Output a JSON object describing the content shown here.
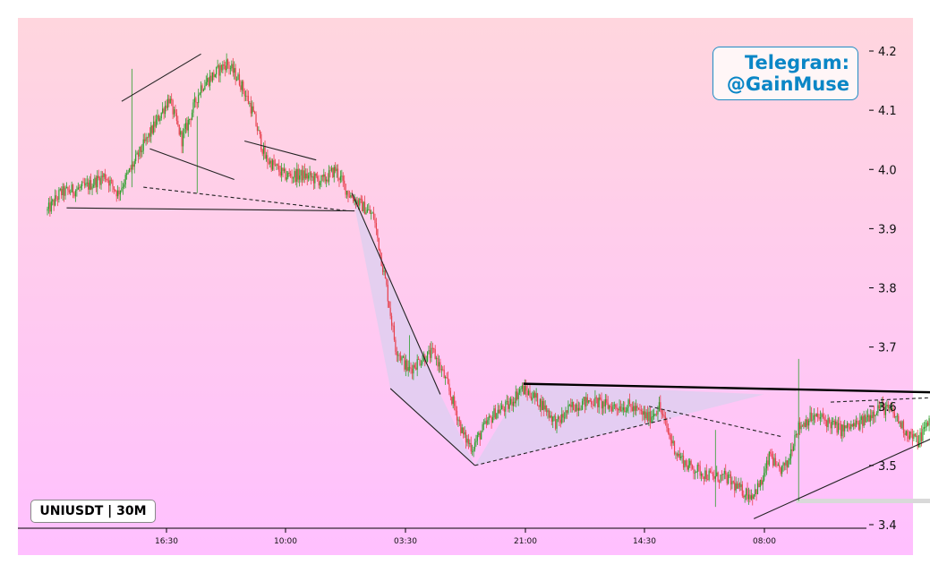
{
  "chart_data": {
    "type": "candlestick",
    "symbol_label": "UNIUSDT | 30M",
    "watermark": {
      "line1": "Telegram:",
      "line2": "@GainMuse"
    },
    "x_tick_labels": [
      "16:30",
      "10:00",
      "03:30",
      "21:00",
      "14:30",
      "08:00"
    ],
    "y_ticks": [
      3.4,
      3.5,
      3.6,
      3.7,
      3.8,
      3.9,
      4.0,
      4.1,
      4.2
    ],
    "y_tick_labels": [
      "3.4",
      "3.5",
      "3.6",
      "3.7",
      "3.8",
      "3.9",
      "4.0",
      "4.1",
      "4.2"
    ],
    "ylim": [
      3.393,
      4.25
    ],
    "x_count": 640,
    "grid": false,
    "colors": {
      "up": "#2ca02c",
      "down": "#e8424f",
      "bg_top": "#ffd6de",
      "bg_bottom": "#ffc0ff",
      "pattern_line": "#222222",
      "resistance": "#000000",
      "arrow": "#1f3fe0",
      "fill": "#d8d0f0",
      "support_band": "#d9d9d9"
    },
    "price_path": [
      [
        0,
        3.93
      ],
      [
        10,
        3.96
      ],
      [
        30,
        3.97
      ],
      [
        45,
        3.99
      ],
      [
        55,
        3.96
      ],
      [
        70,
        4.02
      ],
      [
        85,
        4.08
      ],
      [
        95,
        4.12
      ],
      [
        105,
        4.05
      ],
      [
        120,
        4.14
      ],
      [
        140,
        4.18
      ],
      [
        150,
        4.15
      ],
      [
        160,
        4.1
      ],
      [
        170,
        4.02
      ],
      [
        185,
        3.99
      ],
      [
        200,
        3.99
      ],
      [
        215,
        3.98
      ],
      [
        225,
        4.0
      ],
      [
        235,
        3.96
      ],
      [
        245,
        3.94
      ],
      [
        255,
        3.92
      ],
      [
        265,
        3.8
      ],
      [
        272,
        3.7
      ],
      [
        282,
        3.66
      ],
      [
        292,
        3.68
      ],
      [
        302,
        3.69
      ],
      [
        310,
        3.65
      ],
      [
        318,
        3.6
      ],
      [
        325,
        3.55
      ],
      [
        332,
        3.53
      ],
      [
        340,
        3.56
      ],
      [
        350,
        3.59
      ],
      [
        360,
        3.6
      ],
      [
        370,
        3.63
      ],
      [
        378,
        3.62
      ],
      [
        388,
        3.6
      ],
      [
        398,
        3.57
      ],
      [
        410,
        3.6
      ],
      [
        425,
        3.61
      ],
      [
        438,
        3.6
      ],
      [
        455,
        3.6
      ],
      [
        470,
        3.58
      ],
      [
        478,
        3.6
      ],
      [
        486,
        3.55
      ],
      [
        492,
        3.52
      ],
      [
        500,
        3.5
      ],
      [
        510,
        3.49
      ],
      [
        520,
        3.48
      ],
      [
        530,
        3.48
      ],
      [
        540,
        3.46
      ],
      [
        550,
        3.45
      ],
      [
        558,
        3.47
      ],
      [
        565,
        3.52
      ],
      [
        570,
        3.49
      ],
      [
        578,
        3.5
      ],
      [
        585,
        3.56
      ],
      [
        595,
        3.58
      ],
      [
        605,
        3.58
      ],
      [
        620,
        3.56
      ],
      [
        635,
        3.57
      ],
      [
        645,
        3.59
      ],
      [
        650,
        3.6
      ],
      [
        660,
        3.59
      ],
      [
        670,
        3.56
      ],
      [
        680,
        3.54
      ],
      [
        690,
        3.58
      ],
      [
        700,
        3.59
      ],
      [
        710,
        3.61
      ],
      [
        718,
        3.66
      ],
      [
        722,
        3.68
      ]
    ],
    "patterns": [
      {
        "name": "triangle-1-upper",
        "points": [
          [
            58,
            4.115
          ],
          [
            120,
            4.195
          ]
        ],
        "style": "solid"
      },
      {
        "name": "triangle-1-lower",
        "points": [
          [
            75,
            3.97
          ],
          [
            235,
            3.93
          ]
        ],
        "style": "dashed"
      },
      {
        "name": "channel-1-upper",
        "points": [
          [
            80,
            4.035
          ],
          [
            146,
            3.983
          ]
        ],
        "style": "solid"
      },
      {
        "name": "channel-2",
        "points": [
          [
            154,
            4.048
          ],
          [
            210,
            4.016
          ]
        ],
        "style": "solid"
      },
      {
        "name": "support-1",
        "points": [
          [
            15,
            3.935
          ],
          [
            240,
            3.93
          ]
        ],
        "style": "solid"
      },
      {
        "name": "wedge-1-left",
        "points": [
          [
            238,
            3.96
          ],
          [
            307,
            3.62
          ]
        ],
        "style": "solid"
      },
      {
        "name": "wedge-1-bottom",
        "points": [
          [
            268,
            3.63
          ],
          [
            334,
            3.5
          ]
        ],
        "style": "solid"
      },
      {
        "name": "triangle-2-lower",
        "points": [
          [
            334,
            3.5
          ],
          [
            487,
            3.58
          ]
        ],
        "style": "dashed"
      },
      {
        "name": "triangle-2-mid",
        "points": [
          [
            470,
            3.6
          ],
          [
            575,
            3.548
          ]
        ],
        "style": "dashed"
      },
      {
        "name": "resistance",
        "points": [
          [
            372,
            3.638
          ],
          [
            770,
            3.62
          ]
        ],
        "style": "bold"
      },
      {
        "name": "ascending-support",
        "points": [
          [
            552,
            3.41
          ],
          [
            755,
            3.608
          ]
        ],
        "style": "solid"
      },
      {
        "name": "triangle-3-upper",
        "points": [
          [
            612,
            3.607
          ],
          [
            750,
            3.62
          ]
        ],
        "style": "dashed"
      }
    ],
    "projection": {
      "from": [
        720,
        3.7
      ],
      "to": [
        735,
        3.63
      ]
    },
    "support_zone": {
      "x_start": 585,
      "x_end": 810,
      "value": 3.44
    }
  }
}
